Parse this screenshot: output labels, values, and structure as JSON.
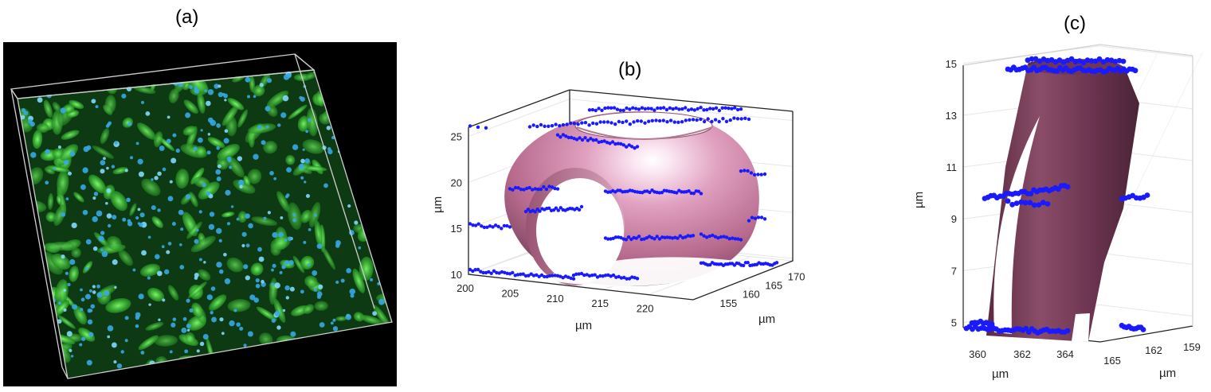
{
  "panels": [
    {
      "label": "(a)"
    },
    {
      "label": "(b)"
    },
    {
      "label": "(c)"
    }
  ],
  "chart_data": [
    {
      "panel": "(a)",
      "type": "other",
      "description_colors": {
        "background": "#000000",
        "cells": "#3fd43f",
        "nuclei": "#35a8e6",
        "box_edge": "#cfcfcf"
      }
    },
    {
      "panel": "(b)",
      "type": "scatter",
      "xlabel": "µm",
      "ylabel": "µm",
      "zlabel": "µm",
      "xticks": [
        200,
        205,
        210,
        215,
        220
      ],
      "yticks": [
        155,
        160,
        165,
        170
      ],
      "zticks": [
        10,
        15,
        20,
        25
      ],
      "xlim": [
        200,
        225
      ],
      "ylim": [
        150,
        172
      ],
      "zlim": [
        10,
        26
      ],
      "surface_color": "#d58fb0",
      "point_color": "#1a1aff"
    },
    {
      "panel": "(c)",
      "type": "scatter",
      "xlabel": "µm",
      "ylabel": "µm",
      "zlabel": "µm",
      "xticks": [
        360,
        362,
        364
      ],
      "yticks": [
        165,
        162,
        159
      ],
      "zticks": [
        5,
        7,
        9,
        11,
        13,
        15
      ],
      "zlim": [
        4.8,
        15.3
      ],
      "surface_color": "#7a3c55",
      "point_color": "#1a1aff"
    }
  ]
}
